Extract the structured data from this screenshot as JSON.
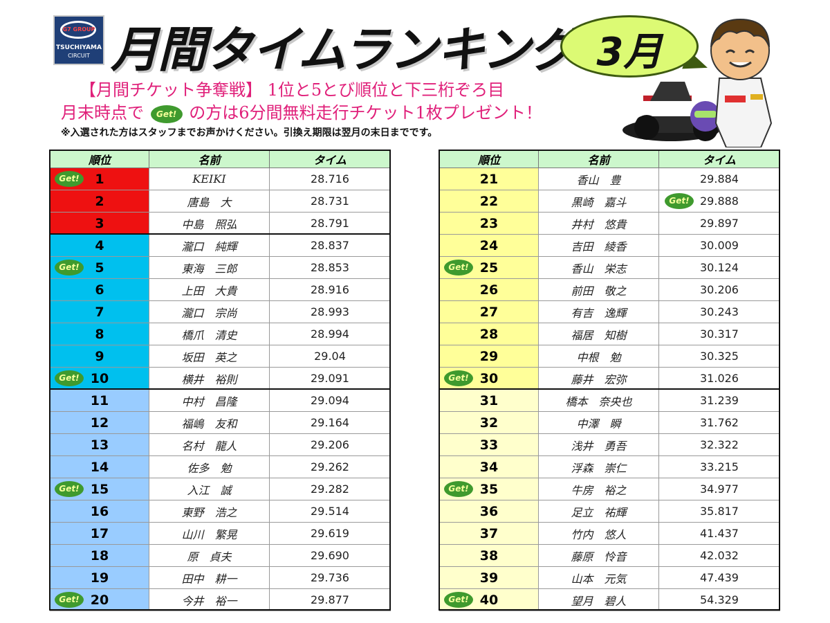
{
  "logo": {
    "brand": "G7 GROUP",
    "name1": "TSUCHIYAMA",
    "name2": "CIRCUIT"
  },
  "title": "月間タイムランキング",
  "month": "3月",
  "campaign": {
    "line1": "【月間チケット争奪戦】 1位と5とび順位と下三桁ぞろ目",
    "line2_pre": "月末時点で",
    "line2_post": "の方は6分間無料走行チケット1枚プレゼント！",
    "get_label": "Get!"
  },
  "note": "※入選された方はスタッフまでお声かけください。引換え期限は翌月の末日までです。",
  "table_headers": {
    "rank": "順位",
    "name": "名前",
    "time": "タイム"
  },
  "colors": {
    "top3": "#ee1111",
    "rank4to10": "#00c0ee",
    "rank11to20": "#99ccff",
    "rank21to30": "#ffff99",
    "rank31to40": "#ffffcc",
    "header": "#ccf7cc",
    "get_badge": "#3f9a2e",
    "campaign_text": "#e0207a"
  },
  "get_label": "Get!",
  "left_rows": [
    {
      "rank": "1",
      "name": "KEIKI",
      "time": "28.716",
      "get": "rank",
      "color": "top3"
    },
    {
      "rank": "2",
      "name": "唐島　大",
      "time": "28.731",
      "get": "",
      "color": "top3"
    },
    {
      "rank": "3",
      "name": "中島　照弘",
      "time": "28.791",
      "get": "",
      "color": "top3"
    },
    {
      "rank": "4",
      "name": "瀧口　純輝",
      "time": "28.837",
      "get": "",
      "color": "rank4to10"
    },
    {
      "rank": "5",
      "name": "東海　三郎",
      "time": "28.853",
      "get": "rank",
      "color": "rank4to10"
    },
    {
      "rank": "6",
      "name": "上田　大貴",
      "time": "28.916",
      "get": "",
      "color": "rank4to10"
    },
    {
      "rank": "7",
      "name": "瀧口　宗尚",
      "time": "28.993",
      "get": "",
      "color": "rank4to10"
    },
    {
      "rank": "8",
      "name": "橋爪　清史",
      "time": "28.994",
      "get": "",
      "color": "rank4to10"
    },
    {
      "rank": "9",
      "name": "坂田　英之",
      "time": "29.04",
      "get": "",
      "color": "rank4to10"
    },
    {
      "rank": "10",
      "name": "横井　裕則",
      "time": "29.091",
      "get": "rank",
      "color": "rank4to10"
    },
    {
      "rank": "11",
      "name": "中村　昌隆",
      "time": "29.094",
      "get": "",
      "color": "rank11to20"
    },
    {
      "rank": "12",
      "name": "福嶋　友和",
      "time": "29.164",
      "get": "",
      "color": "rank11to20"
    },
    {
      "rank": "13",
      "name": "名村　龍人",
      "time": "29.206",
      "get": "",
      "color": "rank11to20"
    },
    {
      "rank": "14",
      "name": "佐多　勉",
      "time": "29.262",
      "get": "",
      "color": "rank11to20"
    },
    {
      "rank": "15",
      "name": "入江　誠",
      "time": "29.282",
      "get": "rank",
      "color": "rank11to20"
    },
    {
      "rank": "16",
      "name": "東野　浩之",
      "time": "29.514",
      "get": "",
      "color": "rank11to20"
    },
    {
      "rank": "17",
      "name": "山川　繁晃",
      "time": "29.619",
      "get": "",
      "color": "rank11to20"
    },
    {
      "rank": "18",
      "name": "原　貞夫",
      "time": "29.690",
      "get": "",
      "color": "rank11to20"
    },
    {
      "rank": "19",
      "name": "田中　耕一",
      "time": "29.736",
      "get": "",
      "color": "rank11to20"
    },
    {
      "rank": "20",
      "name": "今井　裕一",
      "time": "29.877",
      "get": "rank",
      "color": "rank11to20"
    }
  ],
  "right_rows": [
    {
      "rank": "21",
      "name": "香山　豊",
      "time": "29.884",
      "get": "",
      "color": "rank21to30"
    },
    {
      "rank": "22",
      "name": "黒崎　嘉斗",
      "time": "29.888",
      "get": "time",
      "color": "rank21to30"
    },
    {
      "rank": "23",
      "name": "井村　悠貴",
      "time": "29.897",
      "get": "",
      "color": "rank21to30"
    },
    {
      "rank": "24",
      "name": "吉田　綾香",
      "time": "30.009",
      "get": "",
      "color": "rank21to30"
    },
    {
      "rank": "25",
      "name": "香山　栄志",
      "time": "30.124",
      "get": "rank",
      "color": "rank21to30"
    },
    {
      "rank": "26",
      "name": "前田　敬之",
      "time": "30.206",
      "get": "",
      "color": "rank21to30"
    },
    {
      "rank": "27",
      "name": "有吉　逸輝",
      "time": "30.243",
      "get": "",
      "color": "rank21to30"
    },
    {
      "rank": "28",
      "name": "福居　知樹",
      "time": "30.317",
      "get": "",
      "color": "rank21to30"
    },
    {
      "rank": "29",
      "name": "中根　勉",
      "time": "30.325",
      "get": "",
      "color": "rank21to30"
    },
    {
      "rank": "30",
      "name": "藤井　宏弥",
      "time": "31.026",
      "get": "rank",
      "color": "rank21to30"
    },
    {
      "rank": "31",
      "name": "橋本　奈央也",
      "time": "31.239",
      "get": "",
      "color": "rank31to40"
    },
    {
      "rank": "32",
      "name": "中澤　瞬",
      "time": "31.762",
      "get": "",
      "color": "rank31to40"
    },
    {
      "rank": "33",
      "name": "浅井　勇吾",
      "time": "32.322",
      "get": "",
      "color": "rank31to40"
    },
    {
      "rank": "34",
      "name": "浮森　崇仁",
      "time": "33.215",
      "get": "",
      "color": "rank31to40"
    },
    {
      "rank": "35",
      "name": "牛房　裕之",
      "time": "34.977",
      "get": "rank",
      "color": "rank31to40"
    },
    {
      "rank": "36",
      "name": "足立　祐輝",
      "time": "35.817",
      "get": "",
      "color": "rank31to40"
    },
    {
      "rank": "37",
      "name": "竹内　悠人",
      "time": "41.437",
      "get": "",
      "color": "rank31to40"
    },
    {
      "rank": "38",
      "name": "藤原　怜音",
      "time": "42.032",
      "get": "",
      "color": "rank31to40"
    },
    {
      "rank": "39",
      "name": "山本　元気",
      "time": "47.439",
      "get": "",
      "color": "rank31to40"
    },
    {
      "rank": "40",
      "name": "望月　碧人",
      "time": "54.329",
      "get": "rank",
      "color": "rank31to40"
    }
  ]
}
